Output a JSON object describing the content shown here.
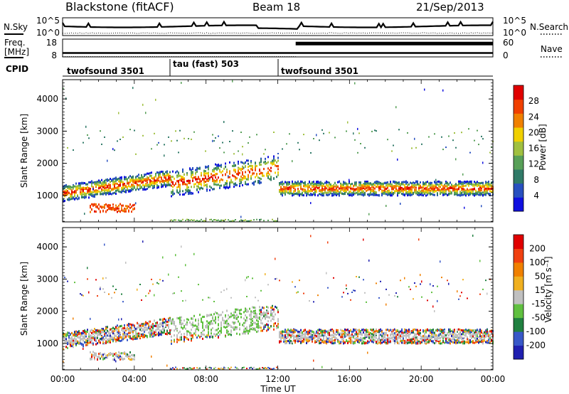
{
  "header": {
    "station": "Blackstone (fitACF)",
    "beam": "Beam 18",
    "date": "21/Sep/2013"
  },
  "sky_panel": {
    "left_label": "N.Sky",
    "right_label": "N.Search",
    "left_ticks": [
      "10^5",
      "10^0"
    ],
    "right_ticks": [
      "10^5",
      "10^0"
    ]
  },
  "freq_panel": {
    "left_label_line1": "Freq.",
    "left_label_line2": "[MHz]",
    "left_ticks": [
      "18",
      "8"
    ],
    "right_ticks": [
      "60",
      "0"
    ],
    "right_label": "Nave",
    "freq_mhz_approx": 10.5,
    "nave_before_1300": 1,
    "nave_after_1300": 58
  },
  "cpid": {
    "label": "CPID",
    "segments": [
      {
        "name": "twofsound 3501",
        "start": "00:00",
        "end": "06:00"
      },
      {
        "name": "tau (fast) 503",
        "start": "06:00",
        "end": "12:00"
      },
      {
        "name": "twofsound 3501",
        "start": "12:00",
        "end": "00:00"
      }
    ]
  },
  "colors": {
    "power": [
      "#1010e0",
      "#2850c0",
      "#307a68",
      "#58a058",
      "#a0c040",
      "#f0d000",
      "#f08000",
      "#f04000",
      "#e00000"
    ],
    "velocity": [
      "#2020b0",
      "#3858c8",
      "#208040",
      "#60c040",
      "#c0c0c0",
      "#f0b020",
      "#f08000",
      "#f04010",
      "#e00000"
    ]
  },
  "chart_data": [
    {
      "type": "heatmap",
      "title": "",
      "xlabel": "",
      "ylabel": "Slant Range [km]",
      "xlim": [
        "00:00",
        "24:00"
      ],
      "ylim": [
        180,
        4600
      ],
      "yticks": [
        "1000",
        "2000",
        "3000",
        "4000"
      ],
      "colorbar_label": "Power [dB]",
      "colorbar_ticks": [
        "4",
        "8",
        "12",
        "16",
        "20",
        "24",
        "28"
      ],
      "features": [
        {
          "name": "main band",
          "time": [
            "00:00",
            "06:00"
          ],
          "range_km": [
            900,
            1600
          ],
          "power_db": 28
        },
        {
          "name": "afternoon band",
          "time": [
            "12:30",
            "24:00"
          ],
          "range_km": [
            1000,
            1700
          ],
          "power_db": 26
        },
        {
          "name": "lower echo",
          "time": [
            "01:30",
            "04:00"
          ],
          "range_km": [
            500,
            800
          ],
          "power_db": 26
        }
      ]
    },
    {
      "type": "heatmap",
      "title": "",
      "xlabel": "Time UT",
      "ylabel": "Slant Range [km]",
      "xlim": [
        "00:00",
        "24:00"
      ],
      "ylim": [
        180,
        4600
      ],
      "xticks": [
        "00:00",
        "04:00",
        "08:00",
        "12:00",
        "16:00",
        "20:00",
        "00:00"
      ],
      "yticks": [
        "1000",
        "2000",
        "3000",
        "4000"
      ],
      "colorbar_label": "Velocity [m s⁻¹]",
      "colorbar_ticks": [
        "200",
        "100",
        "50",
        "15",
        "-15",
        "-50",
        "-100",
        "-200"
      ]
    }
  ]
}
